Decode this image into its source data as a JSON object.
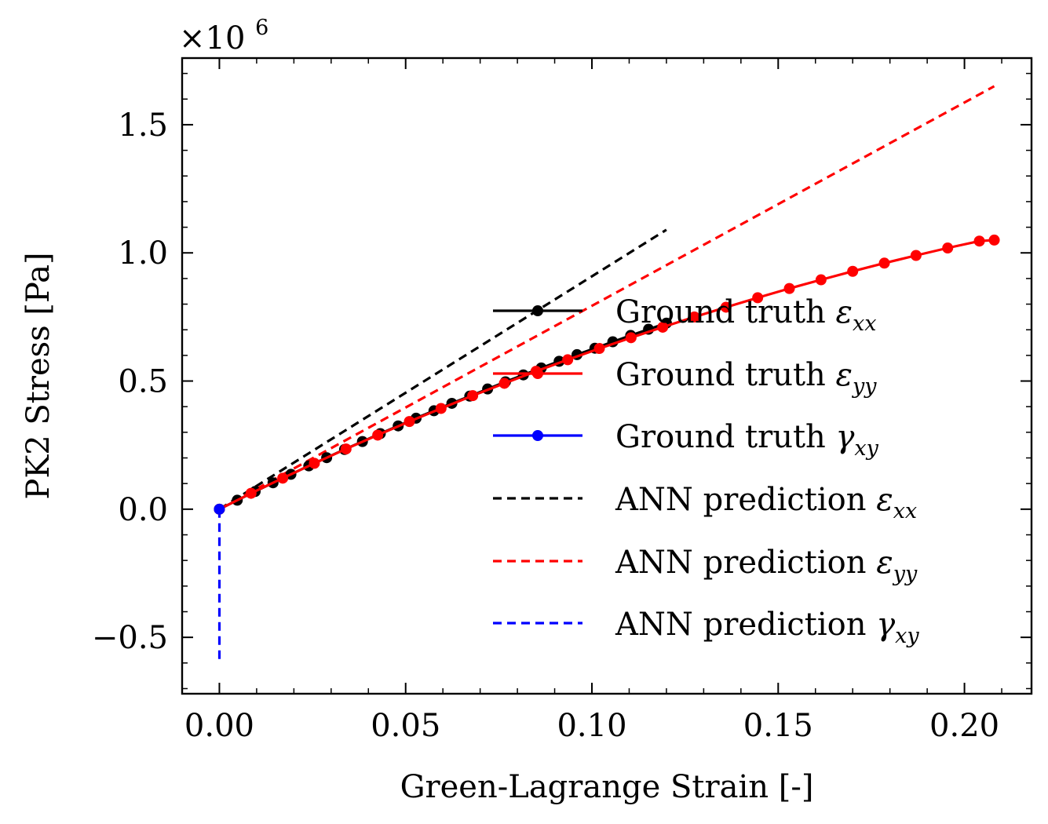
{
  "chart_data": {
    "type": "line",
    "xlabel": "Green-Lagrange Strain [-]",
    "ylabel": "PK2 Stress [Pa]",
    "y_multiplier_label": "×10",
    "y_multiplier_exponent": "6",
    "xlim": [
      -0.01,
      0.218
    ],
    "ylim": [
      -0.72,
      1.76
    ],
    "x_ticks": [
      0.0,
      0.05,
      0.1,
      0.15,
      0.2
    ],
    "x_tick_labels": [
      "0.00",
      "0.05",
      "0.10",
      "0.15",
      "0.20"
    ],
    "y_ticks": [
      -0.5,
      0.0,
      0.5,
      1.0,
      1.5
    ],
    "y_tick_labels": [
      "−0.5",
      "0.0",
      "0.5",
      "1.0",
      "1.5"
    ],
    "grid": false,
    "legend_position": "right",
    "series": [
      {
        "name": "Ground truth εxx",
        "name_main": "Ground truth ",
        "symbol": "ε",
        "subscript": "xx",
        "color": "#000000",
        "style": "solid-marker",
        "x": [
          0.0,
          0.0048,
          0.0096,
          0.0144,
          0.0192,
          0.024,
          0.0288,
          0.0336,
          0.0384,
          0.0432,
          0.048,
          0.0528,
          0.0576,
          0.0624,
          0.0672,
          0.072,
          0.0768,
          0.0816,
          0.0864,
          0.0912,
          0.096,
          0.1008,
          0.1056,
          0.1104,
          0.1152,
          0.12
        ],
        "y": [
          0.0,
          0.035,
          0.069,
          0.103,
          0.136,
          0.169,
          0.201,
          0.233,
          0.264,
          0.295,
          0.325,
          0.355,
          0.384,
          0.413,
          0.441,
          0.469,
          0.497,
          0.524,
          0.551,
          0.577,
          0.603,
          0.628,
          0.653,
          0.678,
          0.702,
          0.726
        ]
      },
      {
        "name": "Ground truth εyy",
        "name_main": "Ground truth ",
        "symbol": "ε",
        "subscript": "yy",
        "color": "#ff0000",
        "style": "solid-marker",
        "x": [
          0.0,
          0.0085,
          0.017,
          0.0255,
          0.034,
          0.0425,
          0.051,
          0.0595,
          0.068,
          0.0765,
          0.085,
          0.0935,
          0.102,
          0.1105,
          0.119,
          0.1275,
          0.136,
          0.1445,
          0.153,
          0.1615,
          0.17,
          0.1785,
          0.187,
          0.1955,
          0.204,
          0.208
        ],
        "y": [
          0.0,
          0.062,
          0.121,
          0.179,
          0.235,
          0.289,
          0.342,
          0.393,
          0.443,
          0.491,
          0.538,
          0.583,
          0.627,
          0.669,
          0.71,
          0.75,
          0.788,
          0.825,
          0.861,
          0.895,
          0.928,
          0.96,
          0.99,
          1.019,
          1.046,
          1.05
        ]
      },
      {
        "name": "Ground truth γxy",
        "name_main": "Ground truth ",
        "symbol": "γ",
        "subscript": "xy",
        "color": "#0000ff",
        "style": "solid-marker",
        "x": [
          0.0
        ],
        "y": [
          0.0
        ]
      },
      {
        "name": "ANN prediction εxx",
        "name_main": "ANN prediction ",
        "symbol": "ε",
        "subscript": "xx",
        "color": "#000000",
        "style": "dashed",
        "x": [
          0.0,
          0.12
        ],
        "y": [
          0.0,
          1.09
        ]
      },
      {
        "name": "ANN prediction εyy",
        "name_main": "ANN prediction ",
        "symbol": "ε",
        "subscript": "yy",
        "color": "#ff0000",
        "style": "dashed",
        "x": [
          0.0,
          0.208
        ],
        "y": [
          0.0,
          1.65
        ]
      },
      {
        "name": "ANN prediction γxy",
        "name_main": "ANN prediction ",
        "symbol": "γ",
        "subscript": "xy",
        "color": "#0000ff",
        "style": "dashed",
        "x": [
          0.0,
          0.0
        ],
        "y": [
          0.0,
          -0.6
        ]
      }
    ]
  }
}
